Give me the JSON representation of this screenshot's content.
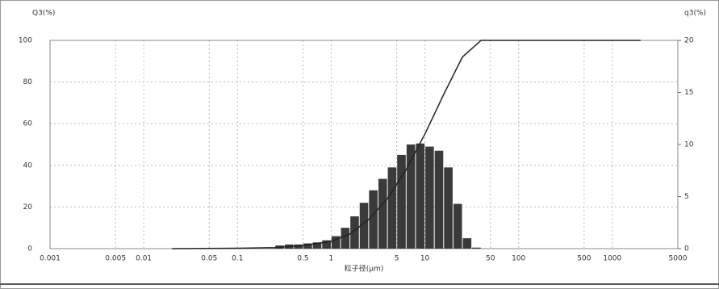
{
  "chart_data": {
    "type": "histogram",
    "y_label": "Q3(%)",
    "y2_label": "q3(%)",
    "x_label": "粒子径(μm)",
    "xscale": "log",
    "xlim": [
      0.001,
      5000
    ],
    "xticks": [
      0.001,
      0.005,
      0.01,
      0.05,
      0.1,
      0.5,
      1,
      5,
      10,
      50,
      100,
      500,
      1000,
      5000
    ],
    "ylim": [
      0,
      100
    ],
    "yticks": [
      0,
      20,
      40,
      60,
      80,
      100
    ],
    "y2lim": [
      0,
      20
    ],
    "y2ticks": [
      0,
      5,
      10,
      15,
      20
    ],
    "grid": true,
    "bar_color": "#3a3a3a",
    "bins": [
      0.251,
      0.316,
      0.398,
      0.501,
      0.631,
      0.794,
      1,
      1.259,
      1.585,
      1.995,
      2.512,
      3.162,
      3.981,
      5.012,
      6.31,
      7.943,
      10,
      12.59,
      15.85,
      19.95,
      25.12,
      31.62,
      39.81
    ],
    "counts": [
      0.3,
      0.4,
      0.4,
      0.5,
      0.6,
      0.8,
      1.2,
      2.0,
      3.1,
      4.4,
      5.6,
      6.7,
      7.8,
      9.0,
      10.0,
      10.1,
      9.8,
      9.4,
      7.8,
      4.3,
      1.0,
      0.1
    ],
    "line": {
      "color": "#222222",
      "x": [
        0.02,
        0.1,
        0.251,
        0.501,
        1,
        1.585,
        2.512,
        3.981,
        6.31,
        10,
        15.85,
        25.12,
        39.81,
        1000,
        2000
      ],
      "values": [
        0,
        0.2,
        0.5,
        1.5,
        3.5,
        7,
        14,
        24,
        38,
        55,
        74,
        92,
        100,
        100,
        100
      ]
    }
  }
}
